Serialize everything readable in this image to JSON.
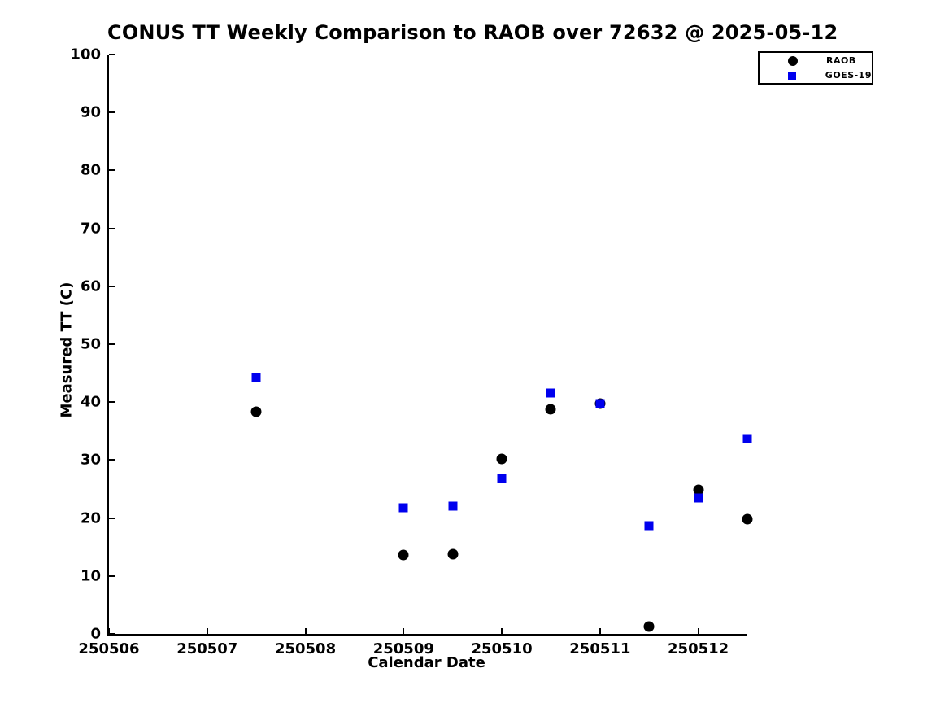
{
  "chart_data": {
    "type": "scatter",
    "title": "CONUS TT Weekly Comparison to RAOB over 72632 @ 2025-05-12",
    "xlabel": "Calendar Date",
    "ylabel": "Measured TT (C)",
    "xlim": [
      250506,
      250512.5
    ],
    "ylim": [
      0,
      100
    ],
    "x_ticks": [
      250506,
      250507,
      250508,
      250509,
      250510,
      250511,
      250512
    ],
    "y_ticks": [
      0,
      10,
      20,
      30,
      40,
      50,
      60,
      70,
      80,
      90,
      100
    ],
    "grid": false,
    "legend_position": "top-right",
    "background_color": "#ffffff",
    "axis_color": "#000000",
    "series": [
      {
        "name": "RAOB",
        "marker": "circle",
        "color": "#000000",
        "points": [
          [
            250507.5,
            38.4
          ],
          [
            250509.0,
            13.6
          ],
          [
            250509.5,
            13.8
          ],
          [
            250510.0,
            30.2
          ],
          [
            250510.5,
            38.7
          ],
          [
            250511.0,
            39.7
          ],
          [
            250511.5,
            1.3
          ],
          [
            250512.0,
            24.8
          ],
          [
            250512.5,
            19.8
          ]
        ]
      },
      {
        "name": "GOES-19",
        "marker": "square",
        "color": "#0000ee",
        "points": [
          [
            250507.5,
            44.2
          ],
          [
            250509.0,
            21.8
          ],
          [
            250509.5,
            22.1
          ],
          [
            250510.0,
            26.8
          ],
          [
            250510.5,
            41.6
          ],
          [
            250511.0,
            39.8
          ],
          [
            250511.5,
            18.7
          ],
          [
            250512.0,
            23.5
          ],
          [
            250512.5,
            33.7
          ]
        ]
      }
    ]
  }
}
